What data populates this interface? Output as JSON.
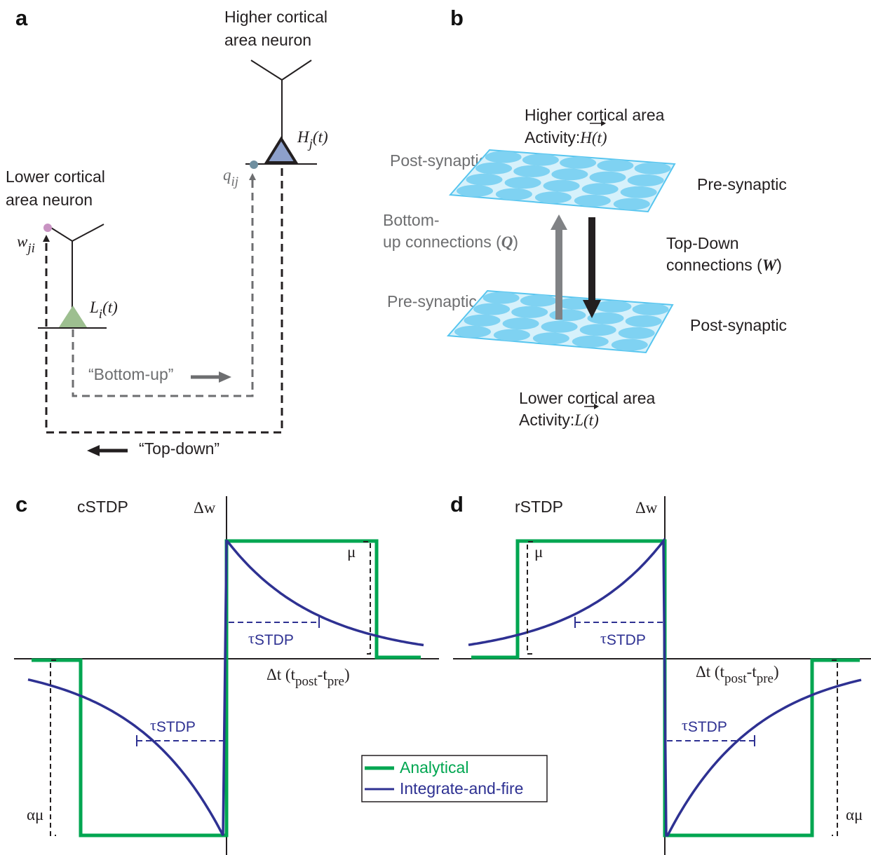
{
  "panels": {
    "a": "a",
    "b": "b",
    "c": "c",
    "d": "d"
  },
  "panel_a": {
    "higher_label": [
      "Higher cortical",
      "area neuron"
    ],
    "lower_label": [
      "Lower cortical",
      "area neuron"
    ],
    "h_main": "H",
    "h_sub": "j",
    "h_arg": "(t)",
    "l_main": "L",
    "l_sub": "i",
    "l_arg": "(t)",
    "q_main": "q",
    "q_sub": "ij",
    "w_main": "w",
    "w_sub": "ji",
    "bottom_up": "“Bottom-up”",
    "top_down": "“Top-down”"
  },
  "panel_b": {
    "higher_title": "Higher cortical area",
    "higher_activity_prefix": "Activity:",
    "higher_activity_symbol": "H(t)",
    "lower_title": "Lower cortical area",
    "lower_activity_prefix": "Activity:",
    "lower_activity_symbol": "L(t)",
    "top_post": "Post-synaptic",
    "top_pre": "Pre-synaptic",
    "bottom_pre": "Pre-synaptic",
    "bottom_post": "Post-synaptic",
    "bottom_up": [
      "Bottom-",
      "up connections ("
    ],
    "bottom_up_symbol": "Q",
    "top_down": [
      "Top-Down",
      "connections ("
    ],
    "top_down_symbol": "W"
  },
  "panel_c": {
    "title": "cSTDP",
    "dw": "Δw",
    "mu": "μ",
    "alpha_mu": "αμ",
    "tau": "τ",
    "tau_sub": "STDP",
    "dt": "Δt (t",
    "dt_post": "post",
    "dt_dash": "-t",
    "dt_pre": "pre",
    "dt_close": ")"
  },
  "panel_d": {
    "title": "rSTDP",
    "dw": "Δw",
    "mu": "μ",
    "alpha_mu": "αμ",
    "tau": "τ",
    "tau_sub": "STDP",
    "dt": "Δt (t",
    "dt_post": "post",
    "dt_dash": "-t",
    "dt_pre": "pre",
    "dt_close": ")"
  },
  "legend": {
    "analytical": "Analytical",
    "integrate": "Integrate-and-fire"
  },
  "colors": {
    "analytical": "#00a651",
    "integrate": "#2e3192",
    "sheet_fill": "#d6f1fb",
    "cell_fill": "#7fd2f2",
    "sheet_edge": "#56c5ef",
    "bottom_up_arrow": "#808285",
    "top_down_arrow": "#231f20",
    "higher_soma": "#8da0cb",
    "lower_soma": "#9dbf90",
    "w_synapse": "#c893c2",
    "q_synapse": "#6f8fa0"
  }
}
